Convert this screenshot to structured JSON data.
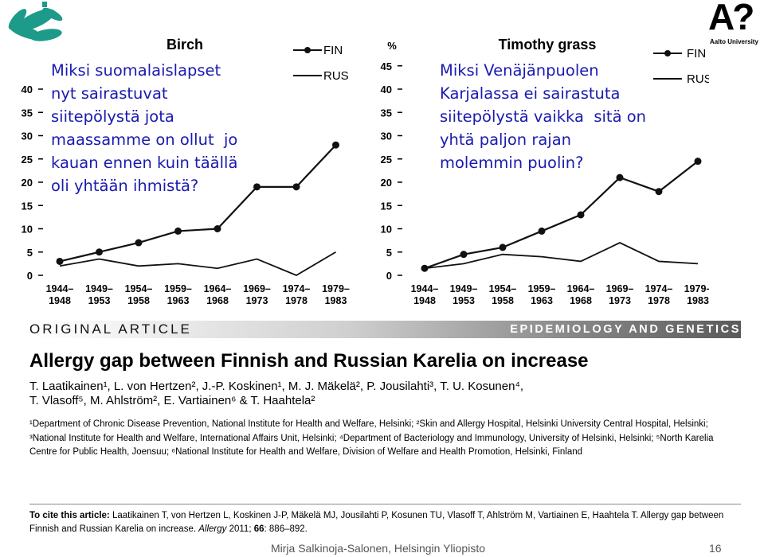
{
  "chart_data": [
    {
      "type": "line",
      "title": "Birch",
      "ylabel": "",
      "xlabel": "",
      "categories": [
        "1944–\n1948",
        "1949–\n1953",
        "1954–\n1958",
        "1959–\n1963",
        "1964–\n1968",
        "1969–\n1973",
        "1974–\n1978",
        "1979–\n1983"
      ],
      "yticks": [
        "0",
        "5",
        "10",
        "15",
        "20",
        "25",
        "30",
        "35",
        "40"
      ],
      "ylim": [
        0,
        40
      ],
      "series": [
        {
          "name": "FIN",
          "marker": "circle",
          "values": [
            3,
            5,
            7,
            9.5,
            10,
            19,
            19,
            28
          ]
        },
        {
          "name": "RUS",
          "marker": "none",
          "values": [
            2,
            3.5,
            2,
            2.5,
            1.5,
            3.5,
            0,
            5
          ]
        }
      ],
      "legend": "top-right"
    },
    {
      "type": "line",
      "title": "Timothy grass",
      "ylabel": "%",
      "xlabel": "",
      "categories": [
        "1944–\n1948",
        "1949–\n1953",
        "1954–\n1958",
        "1959–\n1963",
        "1964–\n1968",
        "1969–\n1973",
        "1974–\n1978",
        "1979–\n1983"
      ],
      "yticks": [
        "0",
        "5",
        "10",
        "15",
        "20",
        "25",
        "30",
        "35",
        "40",
        "45"
      ],
      "ylim": [
        0,
        45
      ],
      "series": [
        {
          "name": "FIN",
          "marker": "circle",
          "values": [
            1.5,
            4.5,
            6,
            9.5,
            13,
            21,
            18,
            24.5
          ]
        },
        {
          "name": "RUS",
          "marker": "none",
          "values": [
            1.5,
            2.5,
            4.5,
            4,
            3,
            7,
            3,
            2.5
          ]
        }
      ],
      "legend": "top-right"
    }
  ],
  "overlay": {
    "left_question": "Miksi suomalaislapset\nnyt sairastuvat\nsiitepölystä jota\nmaassamme on ollut  jo\nkauan ennen kuin täällä\noli yhtään ihmistä?",
    "right_question": "Miksi Venäjänpuolen\nKarjalassa ei sairastuta\nsiitepölystä vaikka  sitä on\nyhtä paljon rajan\nmolemmin puolin?",
    "question_color": "#1a1ab0"
  },
  "logo": {
    "text": "A?",
    "caption": "Aalto University"
  },
  "article": {
    "section_left": "ORIGINAL ARTICLE",
    "section_right": "EPIDEMIOLOGY AND GENETICS",
    "title": "Allergy gap between Finnish and Russian Karelia on increase",
    "authors": "T. Laatikainen¹, L. von Hertzen², J.-P. Koskinen¹, M. J. Mäkelä², P. Jousilahti³, T. U. Kosunen⁴,\nT. Vlasoff⁵, M. Ahlström², E. Vartiainen⁶ & T. Haahtela²",
    "affiliations": "¹Department of Chronic Disease Prevention, National Institute for Health and Welfare, Helsinki; ²Skin and Allergy Hospital, Helsinki University Central Hospital, Helsinki; ³National Institute for Health and Welfare, International Affairs Unit, Helsinki; ⁴Department of Bacteriology and Immunology, University of Helsinki, Helsinki; ⁵North Karelia Centre for Public Health, Joensuu; ⁶National Institute for Health and Welfare, Division of Welfare and Health Promotion, Helsinki, Finland",
    "cite_label": "To cite this article:",
    "cite_text": " Laatikainen T, von Hertzen L, Koskinen J-P, Mäkelä MJ, Jousilahti P, Kosunen TU, Vlasoff T, Ahlström M, Vartiainen E, Haahtela T. Allergy gap between Finnish and Russian Karelia on increase. ",
    "cite_journal": "Allergy",
    "cite_year": " 2011; ",
    "cite_volume": "66",
    "cite_pages": ": 886–892."
  },
  "footer": {
    "text": "Mirja Salkinoja-Salonen, Helsingin Yliopisto",
    "page": "16"
  }
}
